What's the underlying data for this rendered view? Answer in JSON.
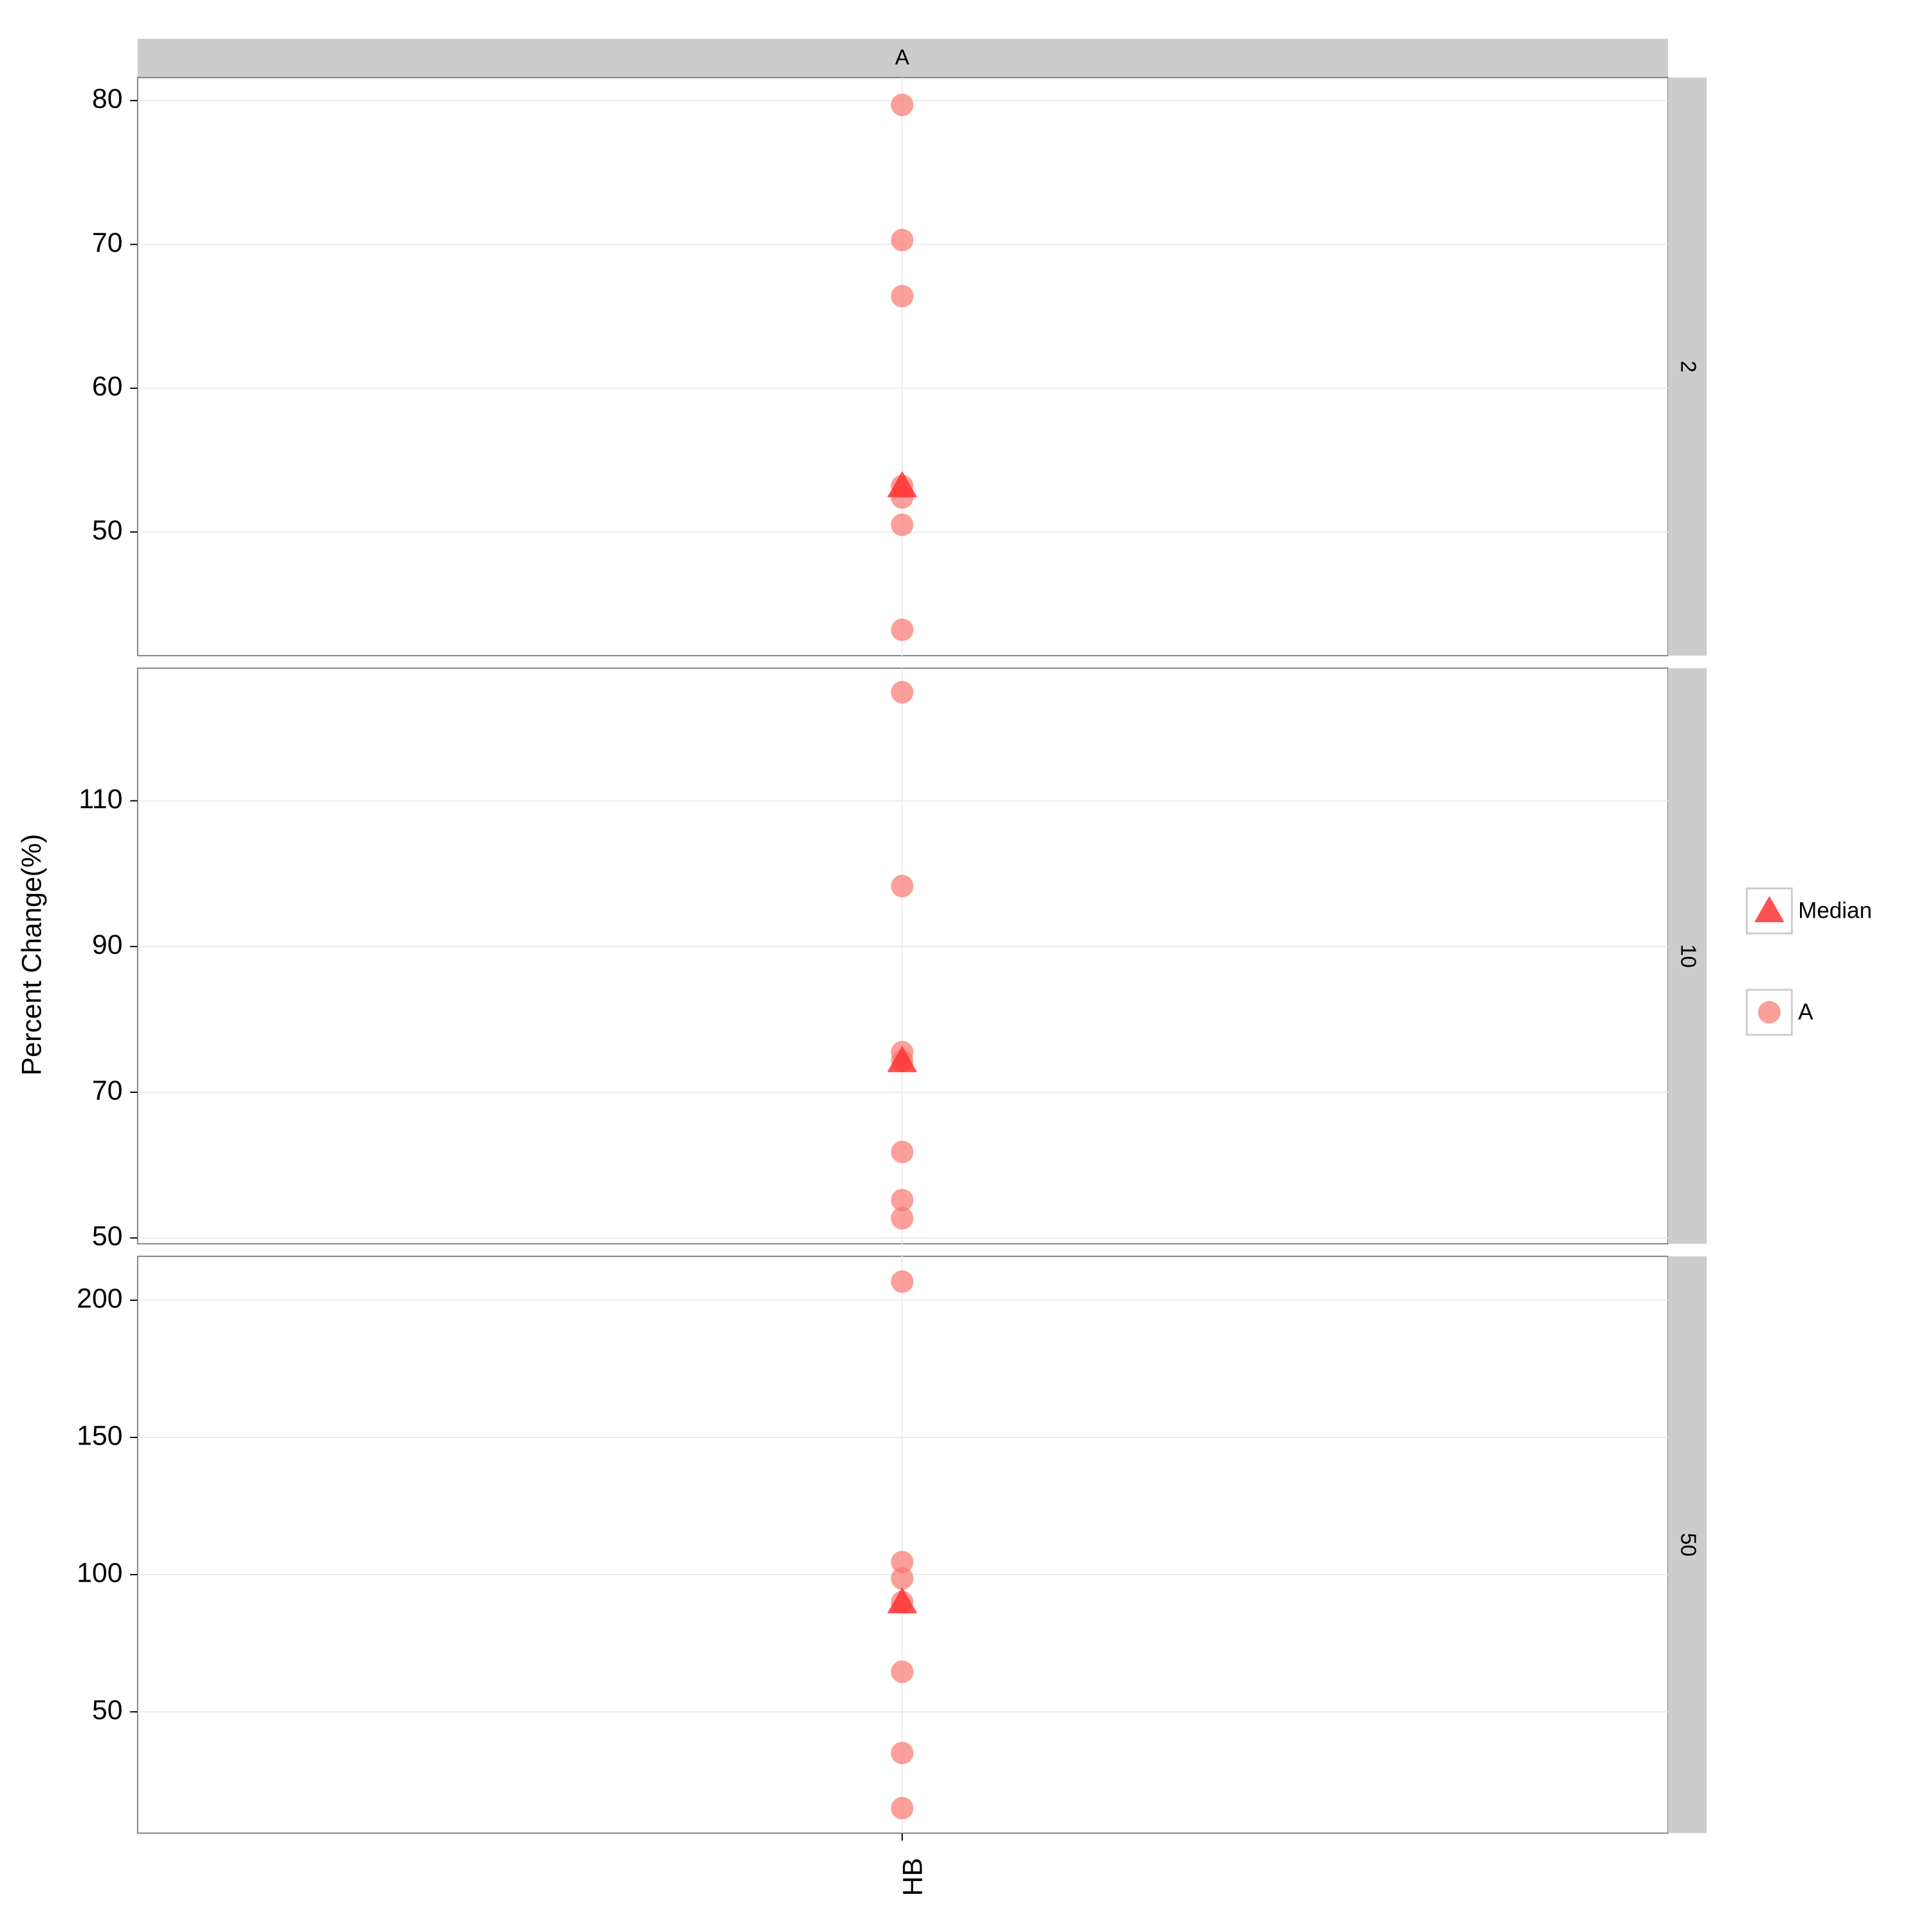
{
  "chart_data": {
    "type": "scatter",
    "y_label": "Percent Change(%)",
    "categories": [
      "HB"
    ],
    "column_strip": "A",
    "grid": true,
    "legend_position": "right",
    "legend": [
      {
        "name": "Median",
        "color": "#ff3333",
        "shape": "triangle"
      },
      {
        "name": "A",
        "color": "#f8766d",
        "shape": "circle"
      }
    ],
    "panels": [
      {
        "label": "2",
        "ylim": [
          41.4,
          81.6
        ],
        "yticks": [
          50,
          60,
          70,
          80
        ],
        "values": [
          79.7,
          70.3,
          66.4,
          53.2,
          52.4,
          50.5,
          43.2
        ],
        "median": [
          53.2
        ]
      },
      {
        "label": "10",
        "ylim": [
          49.2,
          128.2
        ],
        "yticks": [
          50,
          70,
          90,
          110
        ],
        "values": [
          124.9,
          98.3,
          75.5,
          74.3,
          61.8,
          55.2,
          52.7
        ],
        "median": [
          74.3
        ]
      },
      {
        "label": "50",
        "ylim": [
          5.8,
          216
        ],
        "yticks": [
          50,
          100,
          150,
          200
        ],
        "values": [
          206.8,
          104.6,
          98.6,
          90,
          64.6,
          35,
          14.9
        ],
        "median": [
          90
        ]
      }
    ]
  }
}
